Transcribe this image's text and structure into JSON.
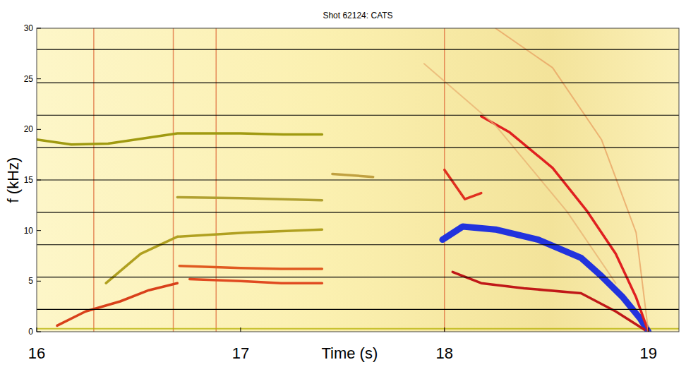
{
  "chart_data": {
    "type": "spectrogram",
    "title": "Shot 62124: CATS",
    "x_label": "Time (s)",
    "y_label": "f (kHz)",
    "xlim": [
      16,
      19.15
    ],
    "ylim": [
      0,
      30
    ],
    "xticks": [
      16,
      17,
      18,
      19
    ],
    "yticks": [
      0,
      5,
      10,
      15,
      20,
      25,
      30
    ],
    "hlines": [
      27.9,
      24.6,
      21.4,
      18.2,
      15.0,
      11.8,
      8.6,
      5.4,
      2.2
    ],
    "vlines": [
      16.28,
      16.67,
      16.88,
      18.0
    ],
    "series": [
      {
        "color": "#b5b000",
        "line_style": "thin",
        "x": [
          16,
          19.15
        ],
        "values": [
          0.3,
          0.3
        ]
      },
      {
        "color": "#a09a10",
        "line_style": "solid",
        "x": [
          16.0,
          16.17,
          16.35,
          16.69,
          17.0,
          17.21,
          17.4
        ],
        "values": [
          19.0,
          18.5,
          18.6,
          19.6,
          19.6,
          19.5,
          19.5
        ]
      },
      {
        "color": "#d8401a",
        "line_style": "solid",
        "x": [
          16.1,
          16.24,
          16.41,
          16.55,
          16.69
        ],
        "values": [
          0.6,
          2.0,
          3.0,
          4.1,
          4.8
        ]
      },
      {
        "color": "#e04a20",
        "line_style": "solid",
        "x": [
          16.75,
          17.0,
          17.2,
          17.4
        ],
        "values": [
          5.2,
          5.0,
          4.8,
          4.8
        ]
      },
      {
        "color": "#e05a20",
        "line_style": "solid",
        "x": [
          16.7,
          17.0,
          17.2,
          17.4
        ],
        "values": [
          6.5,
          6.3,
          6.2,
          6.2
        ]
      },
      {
        "color": "#b0a020",
        "line_style": "solid",
        "x": [
          16.34,
          16.51,
          16.69,
          17.03,
          17.4
        ],
        "values": [
          4.8,
          7.7,
          9.4,
          9.8,
          10.1
        ]
      },
      {
        "color": "#b0a030",
        "line_style": "solid",
        "x": [
          16.69,
          17.0,
          17.4
        ],
        "values": [
          13.3,
          13.2,
          13.0
        ]
      },
      {
        "color": "#c0a040",
        "line_style": "solid",
        "x": [
          17.45,
          17.65
        ],
        "values": [
          15.6,
          15.3
        ]
      },
      {
        "color": "#2233dd",
        "line_style": "bold",
        "x": [
          17.99,
          18.09,
          18.25,
          18.46,
          18.67,
          18.77,
          18.875,
          18.96,
          19.0
        ],
        "values": [
          9.1,
          10.4,
          10.1,
          9.1,
          7.3,
          5.5,
          3.4,
          1.3,
          0
        ]
      },
      {
        "color": "#e02020",
        "line_style": "solid",
        "x": [
          18.18,
          18.32,
          18.53,
          18.7,
          18.84,
          18.94,
          19.0
        ],
        "values": [
          21.3,
          19.7,
          16.2,
          11.9,
          7.7,
          3.4,
          0
        ]
      },
      {
        "color": "#c01818",
        "line_style": "solid",
        "x": [
          18.04,
          18.18,
          18.39,
          18.67,
          18.84,
          18.98
        ],
        "values": [
          5.9,
          4.8,
          4.3,
          3.8,
          2.0,
          0.2
        ]
      },
      {
        "color": "#e03020",
        "line_style": "solid",
        "x": [
          18.0,
          18.1,
          18.18
        ],
        "values": [
          16.0,
          13.1,
          13.7
        ]
      },
      {
        "color": "#e8a060",
        "line_style": "thin",
        "x": [
          18.25,
          18.53,
          18.77,
          18.94,
          19.0
        ],
        "values": [
          30,
          26.1,
          19.0,
          9.8,
          0
        ]
      },
      {
        "color": "#e8b070",
        "line_style": "thin",
        "x": [
          17.9,
          18.25,
          18.6,
          18.84
        ],
        "values": [
          26.5,
          20.4,
          11.9,
          4.8
        ]
      }
    ]
  }
}
